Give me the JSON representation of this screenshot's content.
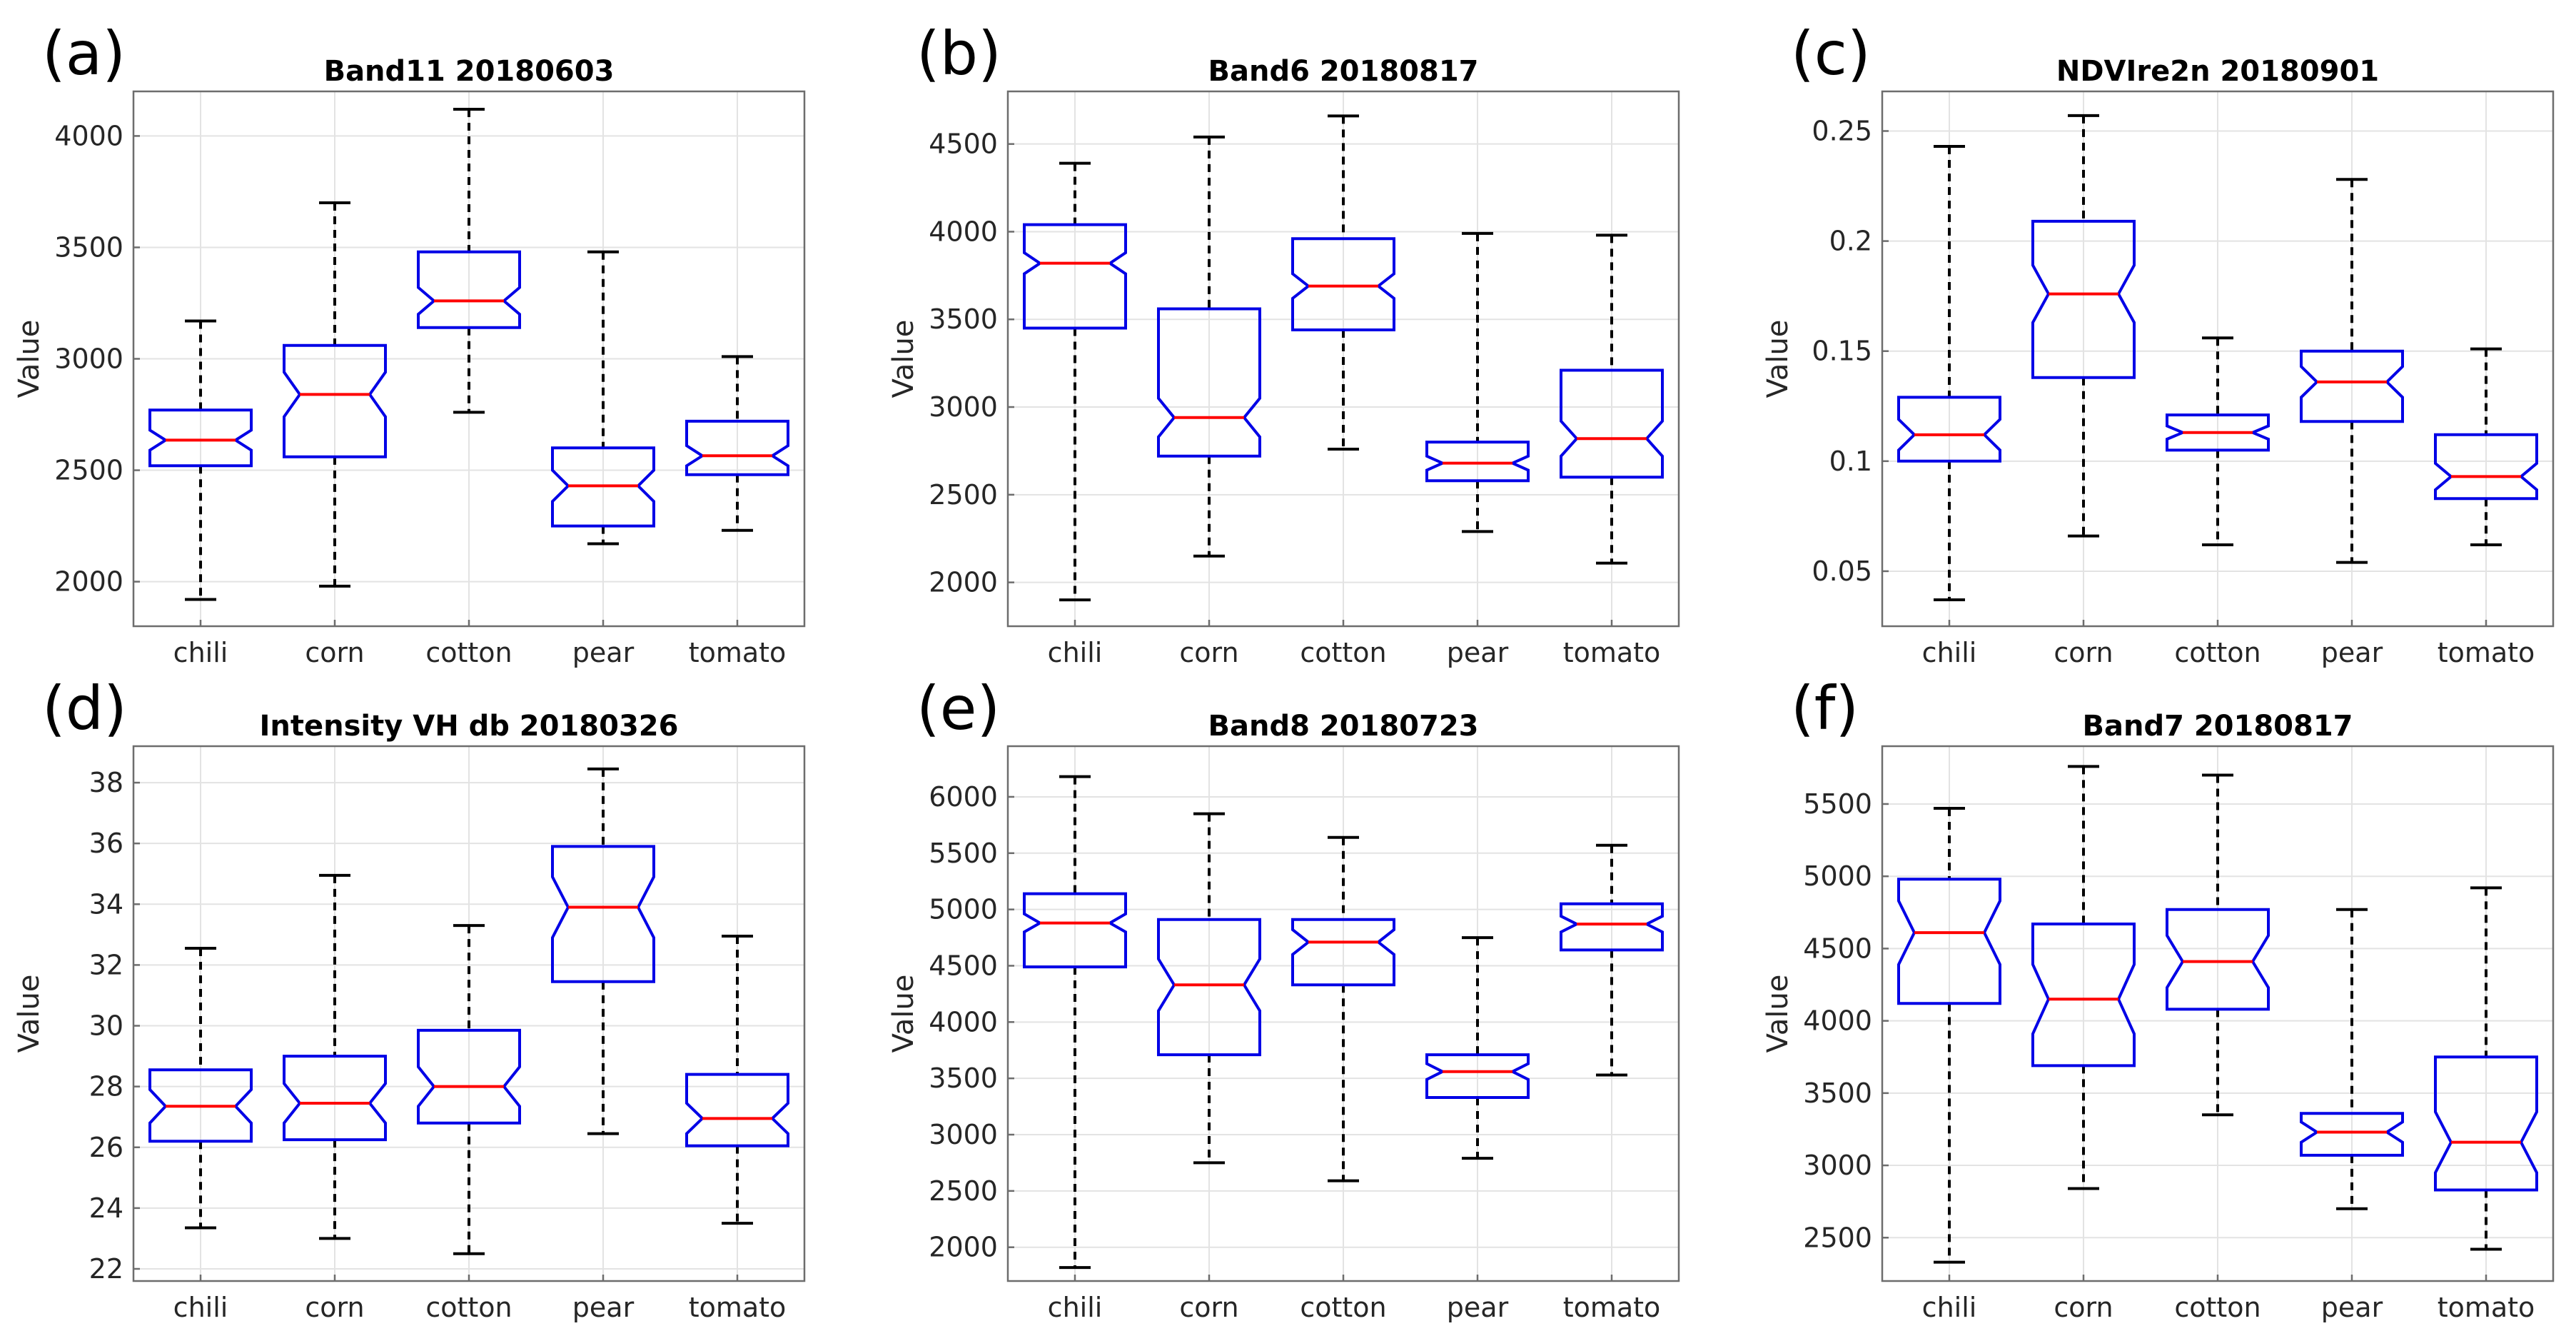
{
  "colors": {
    "box": "#0000e6",
    "median": "#ff0000",
    "whisker": "#000000",
    "grid": "#e3e3e3",
    "axis": "#6d6d6d"
  },
  "chart_data": [
    {
      "type": "boxplot",
      "panel_label": "(a)",
      "title": "Band11 20180603",
      "ylabel": "Value",
      "xlabel": "",
      "categories": [
        "chili",
        "corn",
        "cotton",
        "pear",
        "tomato"
      ],
      "ylim": [
        1800,
        4200
      ],
      "yticks": [
        2000,
        2500,
        3000,
        3500,
        4000
      ],
      "ytick_labels": [
        "2000",
        "2500",
        "3000",
        "3500",
        "4000"
      ],
      "grid": true,
      "boxes": [
        {
          "min": 1920,
          "q1": 2520,
          "median": 2635,
          "q3": 2770,
          "max": 3170,
          "notch_lo": 2590,
          "notch_hi": 2680
        },
        {
          "min": 1980,
          "q1": 2560,
          "median": 2840,
          "q3": 3060,
          "max": 3700,
          "notch_lo": 2740,
          "notch_hi": 2940
        },
        {
          "min": 2760,
          "q1": 3140,
          "median": 3260,
          "q3": 3480,
          "max": 4120,
          "notch_lo": 3200,
          "notch_hi": 3320
        },
        {
          "min": 2170,
          "q1": 2250,
          "median": 2430,
          "q3": 2600,
          "max": 3480,
          "notch_lo": 2360,
          "notch_hi": 2500
        },
        {
          "min": 2230,
          "q1": 2480,
          "median": 2565,
          "q3": 2720,
          "max": 3010,
          "notch_lo": 2520,
          "notch_hi": 2610
        }
      ]
    },
    {
      "type": "boxplot",
      "panel_label": "(b)",
      "title": "Band6 20180817",
      "ylabel": "Value",
      "xlabel": "",
      "categories": [
        "chili",
        "corn",
        "cotton",
        "pear",
        "tomato"
      ],
      "ylim": [
        1750,
        4800
      ],
      "yticks": [
        2000,
        2500,
        3000,
        3500,
        4000,
        4500
      ],
      "ytick_labels": [
        "2000",
        "2500",
        "3000",
        "3500",
        "4000",
        "4500"
      ],
      "grid": true,
      "boxes": [
        {
          "min": 1900,
          "q1": 3450,
          "median": 3820,
          "q3": 4040,
          "max": 4390,
          "notch_lo": 3760,
          "notch_hi": 3880
        },
        {
          "min": 2150,
          "q1": 2720,
          "median": 2940,
          "q3": 3560,
          "max": 4540,
          "notch_lo": 2830,
          "notch_hi": 3050
        },
        {
          "min": 2760,
          "q1": 3440,
          "median": 3690,
          "q3": 3960,
          "max": 4660,
          "notch_lo": 3620,
          "notch_hi": 3760
        },
        {
          "min": 2290,
          "q1": 2580,
          "median": 2680,
          "q3": 2800,
          "max": 3990,
          "notch_lo": 2640,
          "notch_hi": 2720
        },
        {
          "min": 2110,
          "q1": 2600,
          "median": 2820,
          "q3": 3210,
          "max": 3980,
          "notch_lo": 2720,
          "notch_hi": 2920
        }
      ]
    },
    {
      "type": "boxplot",
      "panel_label": "(c)",
      "title": "NDVIre2n 20180901",
      "ylabel": "Value",
      "xlabel": "",
      "categories": [
        "chili",
        "corn",
        "cotton",
        "pear",
        "tomato"
      ],
      "ylim": [
        0.025,
        0.268
      ],
      "yticks": [
        0.05,
        0.1,
        0.15,
        0.2,
        0.25
      ],
      "ytick_labels": [
        "0.05",
        "0.1",
        "0.15",
        "0.2",
        "0.25"
      ],
      "grid": true,
      "boxes": [
        {
          "min": 0.037,
          "q1": 0.1,
          "median": 0.112,
          "q3": 0.129,
          "max": 0.243,
          "notch_lo": 0.105,
          "notch_hi": 0.119
        },
        {
          "min": 0.066,
          "q1": 0.138,
          "median": 0.176,
          "q3": 0.209,
          "max": 0.257,
          "notch_lo": 0.163,
          "notch_hi": 0.189
        },
        {
          "min": 0.062,
          "q1": 0.105,
          "median": 0.113,
          "q3": 0.121,
          "max": 0.156,
          "notch_lo": 0.11,
          "notch_hi": 0.116
        },
        {
          "min": 0.054,
          "q1": 0.118,
          "median": 0.136,
          "q3": 0.15,
          "max": 0.228,
          "notch_lo": 0.129,
          "notch_hi": 0.143
        },
        {
          "min": 0.062,
          "q1": 0.083,
          "median": 0.093,
          "q3": 0.112,
          "max": 0.151,
          "notch_lo": 0.087,
          "notch_hi": 0.099
        }
      ]
    },
    {
      "type": "boxplot",
      "panel_label": "(d)",
      "title": "Intensity VH db 20180326",
      "ylabel": "Value",
      "xlabel": "",
      "categories": [
        "chili",
        "corn",
        "cotton",
        "pear",
        "tomato"
      ],
      "ylim": [
        21.6,
        39.2
      ],
      "yticks": [
        22,
        24,
        26,
        28,
        30,
        32,
        34,
        36,
        38
      ],
      "ytick_labels": [
        "22",
        "24",
        "26",
        "28",
        "30",
        "32",
        "34",
        "36",
        "38"
      ],
      "grid": true,
      "boxes": [
        {
          "min": 23.35,
          "q1": 26.2,
          "median": 27.35,
          "q3": 28.55,
          "max": 32.55,
          "notch_lo": 26.8,
          "notch_hi": 27.9
        },
        {
          "min": 23.0,
          "q1": 26.25,
          "median": 27.45,
          "q3": 29.0,
          "max": 34.95,
          "notch_lo": 26.8,
          "notch_hi": 28.1
        },
        {
          "min": 22.5,
          "q1": 26.8,
          "median": 28.0,
          "q3": 29.85,
          "max": 33.3,
          "notch_lo": 27.35,
          "notch_hi": 28.65
        },
        {
          "min": 26.45,
          "q1": 31.45,
          "median": 33.9,
          "q3": 35.9,
          "max": 38.45,
          "notch_lo": 32.9,
          "notch_hi": 34.9
        },
        {
          "min": 23.5,
          "q1": 26.05,
          "median": 26.95,
          "q3": 28.4,
          "max": 32.95,
          "notch_lo": 26.45,
          "notch_hi": 27.45
        }
      ]
    },
    {
      "type": "boxplot",
      "panel_label": "(e)",
      "title": "Band8 20180723",
      "ylabel": "Value",
      "xlabel": "",
      "categories": [
        "chili",
        "corn",
        "cotton",
        "pear",
        "tomato"
      ],
      "ylim": [
        1700,
        6450
      ],
      "yticks": [
        2000,
        2500,
        3000,
        3500,
        4000,
        4500,
        5000,
        5500,
        6000
      ],
      "ytick_labels": [
        "2000",
        "2500",
        "3000",
        "3500",
        "4000",
        "4500",
        "5000",
        "5500",
        "6000"
      ],
      "grid": true,
      "boxes": [
        {
          "min": 1820,
          "q1": 4490,
          "median": 4880,
          "q3": 5140,
          "max": 6180,
          "notch_lo": 4800,
          "notch_hi": 4960
        },
        {
          "min": 2750,
          "q1": 3710,
          "median": 4330,
          "q3": 4910,
          "max": 5850,
          "notch_lo": 4100,
          "notch_hi": 4560
        },
        {
          "min": 2590,
          "q1": 4330,
          "median": 4710,
          "q3": 4910,
          "max": 5640,
          "notch_lo": 4600,
          "notch_hi": 4820
        },
        {
          "min": 2790,
          "q1": 3330,
          "median": 3560,
          "q3": 3710,
          "max": 4750,
          "notch_lo": 3490,
          "notch_hi": 3630
        },
        {
          "min": 3530,
          "q1": 4640,
          "median": 4870,
          "q3": 5050,
          "max": 5570,
          "notch_lo": 4800,
          "notch_hi": 4940
        }
      ]
    },
    {
      "type": "boxplot",
      "panel_label": "(f)",
      "title": "Band7 20180817",
      "ylabel": "Value",
      "xlabel": "",
      "categories": [
        "chili",
        "corn",
        "cotton",
        "pear",
        "tomato"
      ],
      "ylim": [
        2200,
        5900
      ],
      "yticks": [
        2500,
        3000,
        3500,
        4000,
        4500,
        5000,
        5500
      ],
      "ytick_labels": [
        "2500",
        "3000",
        "3500",
        "4000",
        "4500",
        "5000",
        "5500"
      ],
      "grid": true,
      "boxes": [
        {
          "min": 2330,
          "q1": 4120,
          "median": 4610,
          "q3": 4980,
          "max": 5470,
          "notch_lo": 4390,
          "notch_hi": 4830
        },
        {
          "min": 2840,
          "q1": 3690,
          "median": 4150,
          "q3": 4670,
          "max": 5760,
          "notch_lo": 3910,
          "notch_hi": 4390
        },
        {
          "min": 3350,
          "q1": 4080,
          "median": 4410,
          "q3": 4770,
          "max": 5700,
          "notch_lo": 4230,
          "notch_hi": 4590
        },
        {
          "min": 2700,
          "q1": 3070,
          "median": 3230,
          "q3": 3360,
          "max": 4770,
          "notch_lo": 3160,
          "notch_hi": 3300
        },
        {
          "min": 2420,
          "q1": 2830,
          "median": 3160,
          "q3": 3750,
          "max": 4920,
          "notch_lo": 2950,
          "notch_hi": 3370
        }
      ]
    }
  ]
}
